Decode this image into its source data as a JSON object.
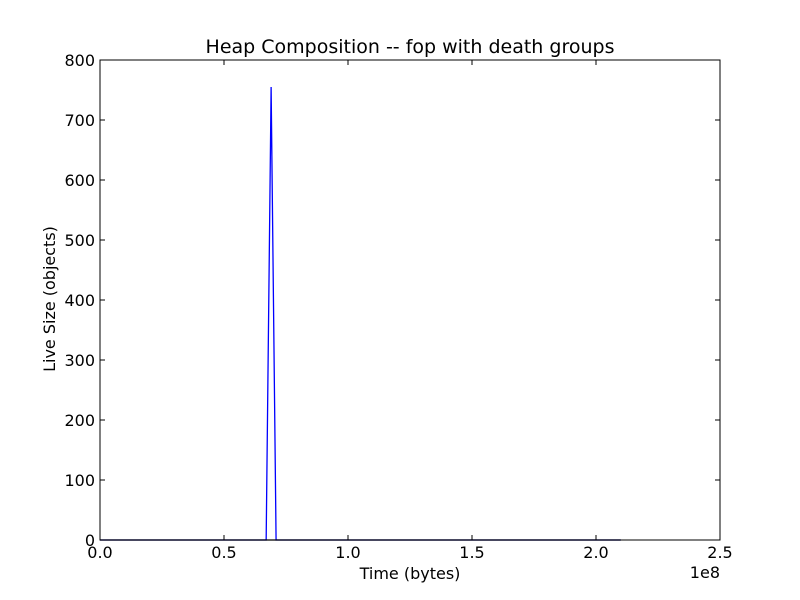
{
  "chart_data": {
    "type": "line",
    "title": "Heap Composition -- fop with death groups",
    "xlabel": "Time (bytes)",
    "ylabel": "Live Size (objects)",
    "x_offset_label": "1e8",
    "xlim": [
      0,
      2.5
    ],
    "ylim": [
      0,
      800
    ],
    "x_ticks": [
      0.0,
      0.5,
      1.0,
      1.5,
      2.0,
      2.5
    ],
    "x_tick_labels": [
      "0.0",
      "0.5",
      "1.0",
      "1.5",
      "2.0",
      "2.5"
    ],
    "y_ticks": [
      0,
      100,
      200,
      300,
      400,
      500,
      600,
      700,
      800
    ],
    "y_tick_labels": [
      "0",
      "100",
      "200",
      "300",
      "400",
      "500",
      "600",
      "700",
      "800"
    ],
    "grid": false,
    "series": [
      {
        "color": "#0000ff",
        "x": [
          0.0,
          0.67,
          0.69,
          0.71,
          0.73,
          2.1
        ],
        "y": [
          0,
          0,
          755,
          0,
          0,
          0
        ]
      },
      {
        "color": "#000000",
        "x": [
          0.0,
          2.1
        ],
        "y": [
          0,
          0
        ]
      }
    ]
  }
}
